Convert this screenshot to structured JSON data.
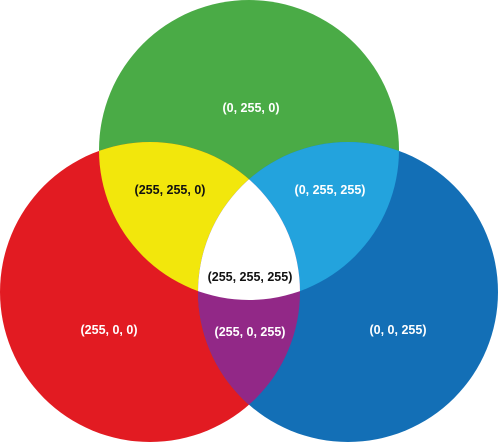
{
  "diagram": {
    "circles": {
      "green": {
        "color": "#4aab46"
      },
      "red": {
        "color": "#e21b22"
      },
      "blue": {
        "color": "#136fb6"
      }
    },
    "overlaps": {
      "red_green": {
        "color": "#f2e70c"
      },
      "green_blue": {
        "color": "#23a3dd"
      },
      "red_blue": {
        "color": "#922887"
      },
      "all": {
        "color": "#ffffff"
      }
    },
    "labels": {
      "green": "(0, 255, 0)",
      "red": "(255, 0, 0)",
      "blue": "(0, 0, 255)",
      "red_green": "(255, 255, 0)",
      "green_blue": "(0, 255, 255)",
      "red_blue": "(255, 0, 255)",
      "all": "(255, 255, 255)"
    },
    "label_color_light": "#ffffff",
    "label_color_dark": "#111111"
  }
}
